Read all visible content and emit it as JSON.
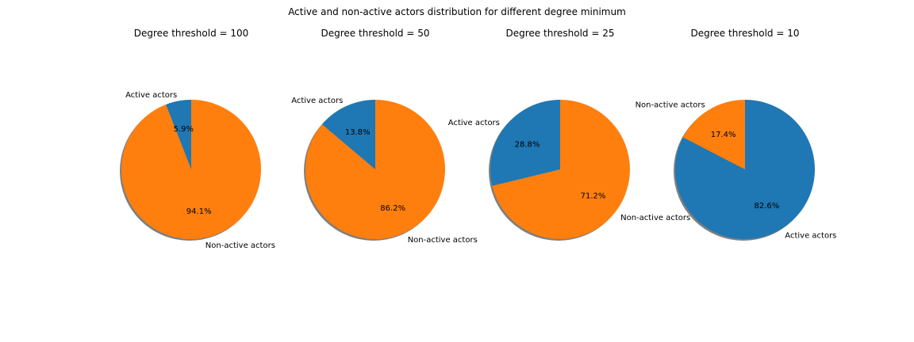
{
  "chart_data": {
    "type": "pie",
    "title": "Active and non-active actors distribution for different degree minimum",
    "colors": {
      "active": "#1f77b4",
      "non_active": "#ff7f0e"
    },
    "shadow": true,
    "charts": [
      {
        "title": "Degree threshold = 100",
        "slices": [
          {
            "label": "Active actors",
            "pct_label": "5.9%",
            "value": 5.9,
            "color": "#1f77b4"
          },
          {
            "label": "Non-active actors",
            "pct_label": "94.1%",
            "value": 94.1,
            "color": "#ff7f0e"
          }
        ]
      },
      {
        "title": "Degree threshold = 50",
        "slices": [
          {
            "label": "Active actors",
            "pct_label": "13.8%",
            "value": 13.8,
            "color": "#1f77b4"
          },
          {
            "label": "Non-active actors",
            "pct_label": "86.2%",
            "value": 86.2,
            "color": "#ff7f0e"
          }
        ]
      },
      {
        "title": "Degree threshold = 25",
        "slices": [
          {
            "label": "Active actors",
            "pct_label": "28.8%",
            "value": 28.8,
            "color": "#1f77b4"
          },
          {
            "label": "Non-active actors",
            "pct_label": "71.2%",
            "value": 71.2,
            "color": "#ff7f0e"
          }
        ]
      },
      {
        "title": "Degree threshold = 10",
        "slices": [
          {
            "label": "Non-active actors",
            "pct_label": "17.4%",
            "value": 17.4,
            "color": "#ff7f0e"
          },
          {
            "label": "Active actors",
            "pct_label": "82.6%",
            "value": 82.6,
            "color": "#1f77b4"
          }
        ]
      }
    ]
  }
}
